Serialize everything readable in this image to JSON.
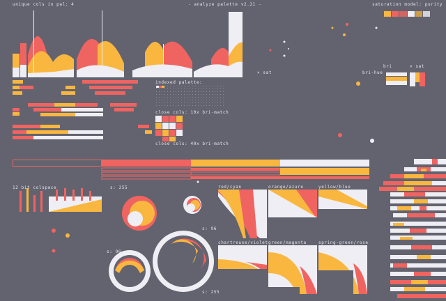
{
  "header": {
    "left": "UNIQUE COLS IN PAL: 4",
    "center": "- ANALYZE PALETTE V2.21 -",
    "right": "SATURATION MODEL: PURITY"
  },
  "palette": {
    "colors": [
      "#ef6461",
      "#f9b740",
      "#eeeef4",
      "#63636f"
    ]
  },
  "labels": {
    "sat_mark": "× SAT",
    "bri": "BRI",
    "bri_hue": "BRI-HUE",
    "sat2": "× SAT",
    "indexed_palette": "INDEXED PALETTE:",
    "close_cols_10": "CLOSE COLS: 10X BRI-MATCH",
    "close_cols_40": "CLOSE COLS: 40X BRI-MATCH",
    "colspace": "12 BIT COLSPACE",
    "s255_a": "S: 255",
    "s96_a": "S: 96",
    "s96_b": "S: 96",
    "s255_b": "S: 255",
    "red_cyan": "RED/CYAN",
    "orange_azure": "ORANGE/AZURE",
    "yellow_blue": "YELLOW/BLUE",
    "chartreuse_violet": "CHARTREUSE/VIOLET",
    "green_magenta": "GREEN/MAGENTA",
    "spring_rose": "SPRING-GREEN/ROSE"
  }
}
